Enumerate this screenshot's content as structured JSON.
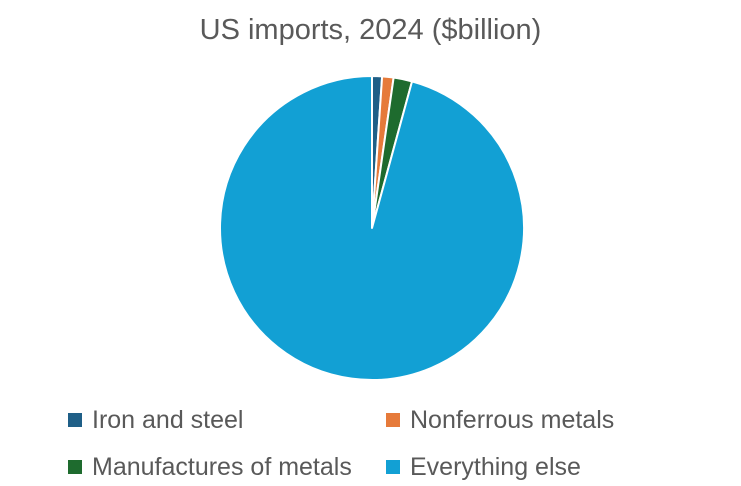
{
  "chart_data": {
    "type": "pie",
    "title": "US imports, 2024 ($billion)",
    "categories": [
      "Iron and steel",
      "Nonferrous metals",
      "Manufactures of metals",
      "Everything else"
    ],
    "values": [
      35,
      40,
      65,
      3160
    ],
    "colors": [
      "#1f5f87",
      "#e67a3a",
      "#1e6b2e",
      "#12a0d4"
    ],
    "legend_position": "bottom",
    "start_angle_deg": 0,
    "direction": "clockwise"
  }
}
